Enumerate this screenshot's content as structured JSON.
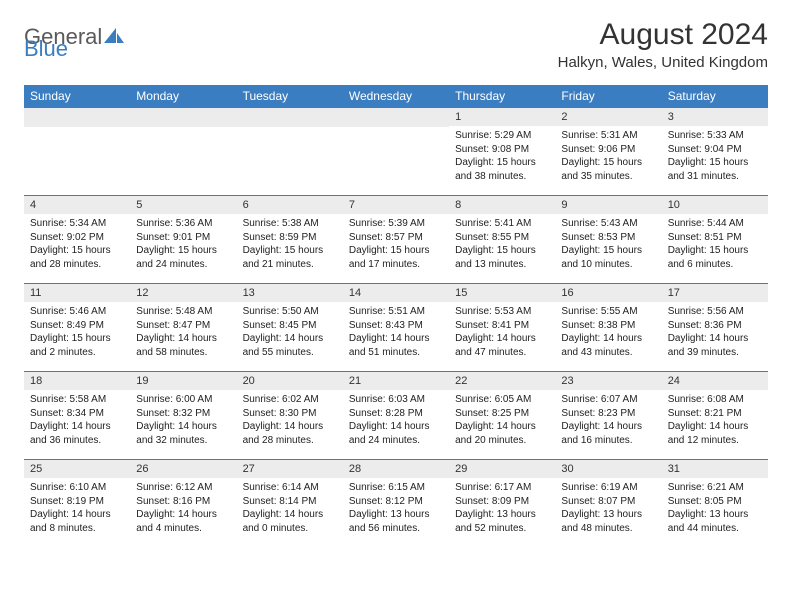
{
  "brand": {
    "part1": "General",
    "part2": "Blue"
  },
  "title": "August 2024",
  "location": "Halkyn, Wales, United Kingdom",
  "colors": {
    "header_bg": "#3a7ec1",
    "header_fg": "#ffffff",
    "daynum_bg": "#ececec",
    "text": "#333333",
    "logo_gray": "#5a5a5a",
    "logo_blue": "#3a7ec1"
  },
  "weekdays": [
    "Sunday",
    "Monday",
    "Tuesday",
    "Wednesday",
    "Thursday",
    "Friday",
    "Saturday"
  ],
  "weeks": [
    [
      null,
      null,
      null,
      null,
      {
        "day": "1",
        "sunrise": "5:29 AM",
        "sunset": "9:08 PM",
        "daylight": "15 hours and 38 minutes."
      },
      {
        "day": "2",
        "sunrise": "5:31 AM",
        "sunset": "9:06 PM",
        "daylight": "15 hours and 35 minutes."
      },
      {
        "day": "3",
        "sunrise": "5:33 AM",
        "sunset": "9:04 PM",
        "daylight": "15 hours and 31 minutes."
      }
    ],
    [
      {
        "day": "4",
        "sunrise": "5:34 AM",
        "sunset": "9:02 PM",
        "daylight": "15 hours and 28 minutes."
      },
      {
        "day": "5",
        "sunrise": "5:36 AM",
        "sunset": "9:01 PM",
        "daylight": "15 hours and 24 minutes."
      },
      {
        "day": "6",
        "sunrise": "5:38 AM",
        "sunset": "8:59 PM",
        "daylight": "15 hours and 21 minutes."
      },
      {
        "day": "7",
        "sunrise": "5:39 AM",
        "sunset": "8:57 PM",
        "daylight": "15 hours and 17 minutes."
      },
      {
        "day": "8",
        "sunrise": "5:41 AM",
        "sunset": "8:55 PM",
        "daylight": "15 hours and 13 minutes."
      },
      {
        "day": "9",
        "sunrise": "5:43 AM",
        "sunset": "8:53 PM",
        "daylight": "15 hours and 10 minutes."
      },
      {
        "day": "10",
        "sunrise": "5:44 AM",
        "sunset": "8:51 PM",
        "daylight": "15 hours and 6 minutes."
      }
    ],
    [
      {
        "day": "11",
        "sunrise": "5:46 AM",
        "sunset": "8:49 PM",
        "daylight": "15 hours and 2 minutes."
      },
      {
        "day": "12",
        "sunrise": "5:48 AM",
        "sunset": "8:47 PM",
        "daylight": "14 hours and 58 minutes."
      },
      {
        "day": "13",
        "sunrise": "5:50 AM",
        "sunset": "8:45 PM",
        "daylight": "14 hours and 55 minutes."
      },
      {
        "day": "14",
        "sunrise": "5:51 AM",
        "sunset": "8:43 PM",
        "daylight": "14 hours and 51 minutes."
      },
      {
        "day": "15",
        "sunrise": "5:53 AM",
        "sunset": "8:41 PM",
        "daylight": "14 hours and 47 minutes."
      },
      {
        "day": "16",
        "sunrise": "5:55 AM",
        "sunset": "8:38 PM",
        "daylight": "14 hours and 43 minutes."
      },
      {
        "day": "17",
        "sunrise": "5:56 AM",
        "sunset": "8:36 PM",
        "daylight": "14 hours and 39 minutes."
      }
    ],
    [
      {
        "day": "18",
        "sunrise": "5:58 AM",
        "sunset": "8:34 PM",
        "daylight": "14 hours and 36 minutes."
      },
      {
        "day": "19",
        "sunrise": "6:00 AM",
        "sunset": "8:32 PM",
        "daylight": "14 hours and 32 minutes."
      },
      {
        "day": "20",
        "sunrise": "6:02 AM",
        "sunset": "8:30 PM",
        "daylight": "14 hours and 28 minutes."
      },
      {
        "day": "21",
        "sunrise": "6:03 AM",
        "sunset": "8:28 PM",
        "daylight": "14 hours and 24 minutes."
      },
      {
        "day": "22",
        "sunrise": "6:05 AM",
        "sunset": "8:25 PM",
        "daylight": "14 hours and 20 minutes."
      },
      {
        "day": "23",
        "sunrise": "6:07 AM",
        "sunset": "8:23 PM",
        "daylight": "14 hours and 16 minutes."
      },
      {
        "day": "24",
        "sunrise": "6:08 AM",
        "sunset": "8:21 PM",
        "daylight": "14 hours and 12 minutes."
      }
    ],
    [
      {
        "day": "25",
        "sunrise": "6:10 AM",
        "sunset": "8:19 PM",
        "daylight": "14 hours and 8 minutes."
      },
      {
        "day": "26",
        "sunrise": "6:12 AM",
        "sunset": "8:16 PM",
        "daylight": "14 hours and 4 minutes."
      },
      {
        "day": "27",
        "sunrise": "6:14 AM",
        "sunset": "8:14 PM",
        "daylight": "14 hours and 0 minutes."
      },
      {
        "day": "28",
        "sunrise": "6:15 AM",
        "sunset": "8:12 PM",
        "daylight": "13 hours and 56 minutes."
      },
      {
        "day": "29",
        "sunrise": "6:17 AM",
        "sunset": "8:09 PM",
        "daylight": "13 hours and 52 minutes."
      },
      {
        "day": "30",
        "sunrise": "6:19 AM",
        "sunset": "8:07 PM",
        "daylight": "13 hours and 48 minutes."
      },
      {
        "day": "31",
        "sunrise": "6:21 AM",
        "sunset": "8:05 PM",
        "daylight": "13 hours and 44 minutes."
      }
    ]
  ],
  "labels": {
    "sunrise": "Sunrise: ",
    "sunset": "Sunset: ",
    "daylight": "Daylight: "
  }
}
